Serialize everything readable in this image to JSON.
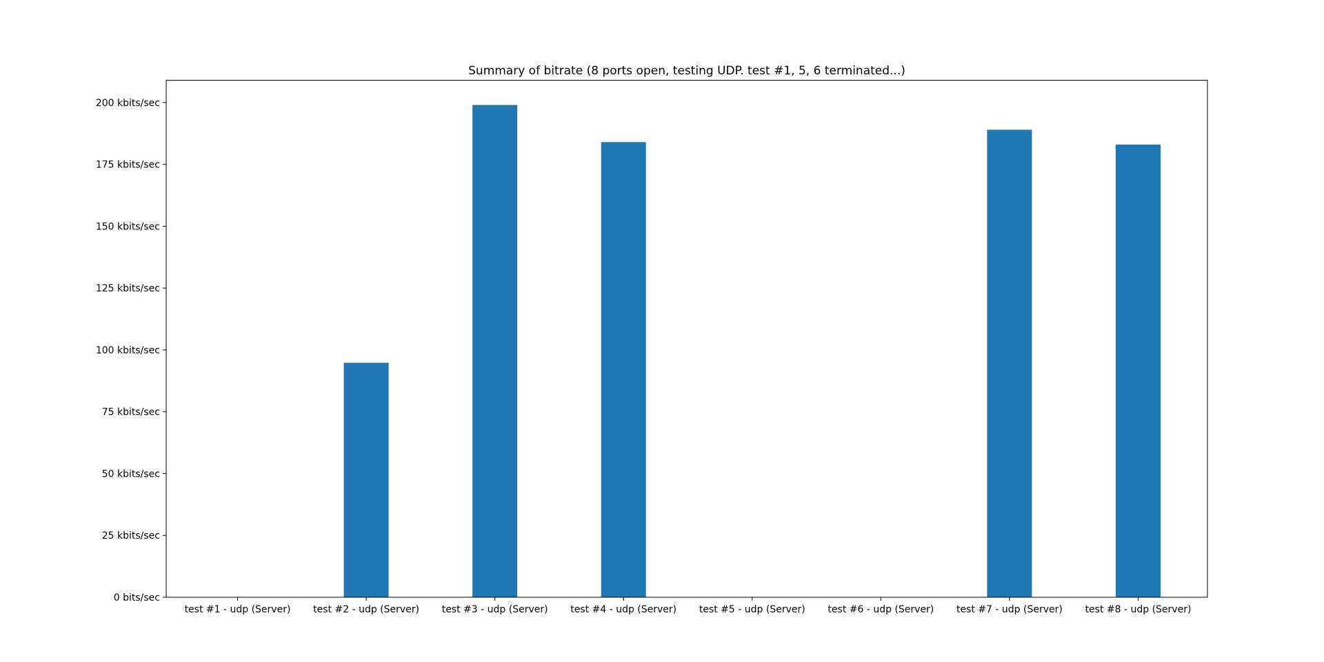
{
  "chart_data": {
    "type": "bar",
    "title": "Summary of bitrate (8 ports open, testing UDP. test #1, 5, 6 terminated...)",
    "xlabel": "",
    "ylabel": "",
    "categories": [
      "test #1 - udp (Server)",
      "test #2 - udp (Server)",
      "test #3 - udp (Server)",
      "test #4 - udp (Server)",
      "test #5 - udp (Server)",
      "test #6 - udp (Server)",
      "test #7 - udp (Server)",
      "test #8 - udp (Server)"
    ],
    "values": [
      0,
      94.8,
      199.0,
      184.0,
      0,
      0,
      189.0,
      183.0
    ],
    "value_unit": "kbits/sec",
    "ylim": [
      0,
      209.0
    ],
    "yticks": [
      0,
      25,
      50,
      75,
      100,
      125,
      150,
      175,
      200
    ],
    "ytick_labels": [
      "0 bits/sec",
      "25 kbits/sec",
      "50 kbits/sec",
      "75 kbits/sec",
      "100 kbits/sec",
      "125 kbits/sec",
      "150 kbits/sec",
      "175 kbits/sec",
      "200 kbits/sec"
    ],
    "bar_color": "#1f77b4",
    "grid": false,
    "legend": "none"
  }
}
